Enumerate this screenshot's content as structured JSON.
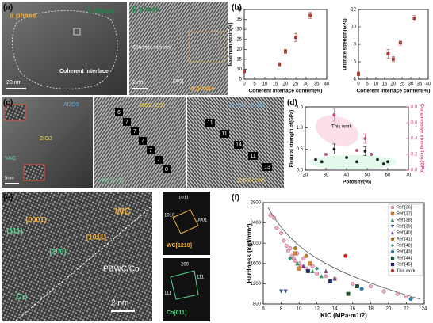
{
  "figure": {
    "panel_labels": [
      "(a)",
      "(b)",
      "(c)",
      "(d)",
      "(e)",
      "(f)"
    ],
    "a": {
      "left_phase1": "α phase",
      "left_phase2": "β phase",
      "left_interface": "Coherent interface",
      "left_scale": "20 nm",
      "right_phase1": "β phase",
      "right_interface": "Coherent interface",
      "right_zone": "[001]",
      "right_phase2": "α phase",
      "right_scale": "2 nm"
    },
    "c": {
      "alumina": "Al2O3",
      "zirconia": "ZrO2",
      "yag": "YAG",
      "scale": "5nm",
      "mid_top": "ZrO2 (111)",
      "mid_bottom": "YAG (020)",
      "right_top": "(1-120) Al2O3",
      "right_bottom": "ZrO2 (200)",
      "mid_counts": [
        "6",
        "7",
        "7",
        "7",
        "7",
        "7",
        "8"
      ],
      "right_counts": [
        "11",
        "11",
        "14",
        "11",
        "13"
      ]
    },
    "e": {
      "wc": "WC",
      "co": "Co",
      "p0001": "{0001}",
      "p111": "{111}",
      "p200": "{200}",
      "p1011": "{1011}",
      "boundary": "PBWC/Co",
      "scale": "2 nm",
      "fft1_labels": [
        "1011",
        "1010",
        "0001"
      ],
      "fft1_zone": "WC[1210]",
      "fft2_labels": [
        "200",
        "111",
        "111"
      ],
      "fft2_zone": "Co[011]"
    }
  },
  "chart_data": [
    {
      "type": "scatter",
      "xlabel": "Coherent interface content(%)",
      "ylabel": "Maximum strain(%)",
      "xlim": [
        0,
        40
      ],
      "xticks": [
        0,
        5,
        10,
        15,
        20,
        25,
        30,
        35,
        40
      ],
      "ylim": [
        5,
        40
      ],
      "yticks": [
        5,
        10,
        15,
        20,
        25,
        30,
        35,
        40
      ],
      "series": [
        {
          "name": null,
          "color": "#c0392b",
          "marker": "square",
          "x": [
            0,
            17,
            20,
            25,
            32
          ],
          "values": [
            9,
            12.5,
            19,
            26,
            37
          ],
          "errors": [
            0.8,
            0.8,
            1,
            2,
            1.5
          ]
        }
      ]
    },
    {
      "type": "scatter",
      "xlabel": "Coherent interface content(%)",
      "ylabel": "Ultimate strength(GPa)",
      "xlim": [
        0,
        40
      ],
      "xticks": [
        0,
        5,
        10,
        15,
        20,
        25,
        30,
        35,
        40
      ],
      "ylim": [
        4,
        12
      ],
      "yticks": [
        4,
        6,
        8,
        10,
        12
      ],
      "series": [
        {
          "name": null,
          "color": "#c0392b",
          "marker": "square",
          "x": [
            0,
            17,
            20,
            24,
            32
          ],
          "values": [
            4.6,
            6.9,
            6.3,
            8.2,
            11
          ],
          "errors": [
            0.2,
            0.5,
            0.3,
            0.3,
            0.3
          ]
        }
      ]
    },
    {
      "type": "scatter",
      "xlabel": "Porosity(%)",
      "ylabel": "Flexural strength σf(GPa)",
      "y2label": "Compressive strength σc(GPa)",
      "annotation": "This work",
      "xlim": [
        20,
        70
      ],
      "xticks": [
        20,
        30,
        40,
        50,
        60,
        70
      ],
      "ylim": [
        0,
        1.5
      ],
      "yticks": [
        {
          "value": 0,
          "label": "0.0"
        },
        0.5,
        {
          "value": 1,
          "label": "1.0"
        },
        1.5
      ],
      "y2lim": [
        0,
        0.8
      ],
      "y2ticks": [
        {
          "value": 0,
          "label": "0.0"
        },
        0.2,
        0.4,
        0.6,
        0.8
      ],
      "series": [
        {
          "name": null,
          "color": "#222",
          "marker": "circle",
          "x": [
            34,
            49,
            25,
            28,
            40,
            45,
            55,
            58,
            60
          ],
          "values": [
            0.5,
            0.45,
            0.25,
            0.2,
            0.3,
            0.2,
            0.25,
            0.15,
            0.2
          ],
          "errors": [
            0.12,
            0.1,
            null,
            null,
            null,
            null,
            null,
            null,
            null
          ]
        },
        {
          "name": null,
          "color": "#e0478a",
          "marker": "circle",
          "axis": "y2",
          "x": [
            34,
            49,
            30,
            45,
            52
          ],
          "values": [
            0.7,
            0.4,
            0.2,
            0.25,
            0.2
          ],
          "errors": [
            0.08,
            0.06,
            null,
            null,
            null
          ]
        }
      ]
    },
    {
      "type": "scatter",
      "xlabel": "KIC (MPa·m1/2)",
      "ylabel": "Hardness (kgf/mm²)",
      "legend": "upper right",
      "xlim": [
        6,
        24
      ],
      "xticks": [
        6,
        8,
        10,
        12,
        14,
        16,
        18,
        20,
        22,
        24
      ],
      "ylim": [
        800,
        2800
      ],
      "yticks": [
        800,
        1200,
        1600,
        2000,
        2400,
        2800
      ],
      "series": [
        {
          "name": "Ref.[36]",
          "color": "#f4a6c8",
          "marker": "circle",
          "x": [
            6.8,
            7.2,
            7.5,
            8,
            8.3,
            8.6,
            8.8,
            9,
            9.2,
            9.4,
            9.6,
            9.8,
            10,
            10.2,
            10.5,
            10.8,
            11,
            11.5,
            12,
            13,
            14,
            16,
            18,
            19.5,
            21,
            22
          ],
          "values": [
            2550,
            2500,
            2300,
            2200,
            2050,
            1950,
            1850,
            1900,
            1750,
            1700,
            1650,
            1800,
            1600,
            1550,
            1700,
            1500,
            1450,
            1550,
            1400,
            1350,
            1300,
            1200,
            1150,
            1050,
            1000,
            950
          ]
        },
        {
          "name": "Ref.[37]",
          "color": "#e67e22",
          "marker": "square",
          "x": [
            9.5,
            10,
            11.2
          ],
          "values": [
            1800,
            1500,
            1600
          ]
        },
        {
          "name": "Ref.[38]",
          "color": "#27ae60",
          "marker": "triangle",
          "x": [
            9.8,
            11.5,
            12.5
          ],
          "values": [
            1600,
            1450,
            1350
          ]
        },
        {
          "name": "Ref.[39]",
          "color": "#2e5fa8",
          "marker": "tridown",
          "x": [
            8,
            8.5
          ],
          "values": [
            1050,
            1050
          ]
        },
        {
          "name": "Ref.[40]",
          "color": "#7d3c98",
          "marker": "triangle",
          "x": [
            10.5,
            13,
            14
          ],
          "values": [
            1550,
            1450,
            1300
          ]
        },
        {
          "name": "Ref.[41]",
          "color": "#b9770e",
          "marker": "circle",
          "x": [
            9.6,
            10.8
          ],
          "values": [
            1900,
            1750
          ]
        },
        {
          "name": "Ref.[42]",
          "color": "#16a085",
          "marker": "diamond",
          "x": [
            9,
            12
          ],
          "values": [
            1700,
            1500
          ]
        },
        {
          "name": "Ref.[43]",
          "color": "#2980b9",
          "marker": "circle",
          "x": [
            17,
            22.5
          ],
          "values": [
            1100,
            900
          ]
        },
        {
          "name": "Ref.[44]",
          "color": "#1e5631",
          "marker": "square",
          "x": [
            15.5,
            16.5
          ],
          "values": [
            1000,
            1150
          ]
        },
        {
          "name": "Ref.[45]",
          "color": "#1b2a6b",
          "marker": "square",
          "x": [
            11,
            13.5
          ],
          "values": [
            1450,
            1250
          ]
        },
        {
          "name": "This work",
          "color": "#e02020",
          "marker": "circle",
          "x": [
            15.2
          ],
          "values": [
            1750
          ]
        }
      ]
    }
  ]
}
